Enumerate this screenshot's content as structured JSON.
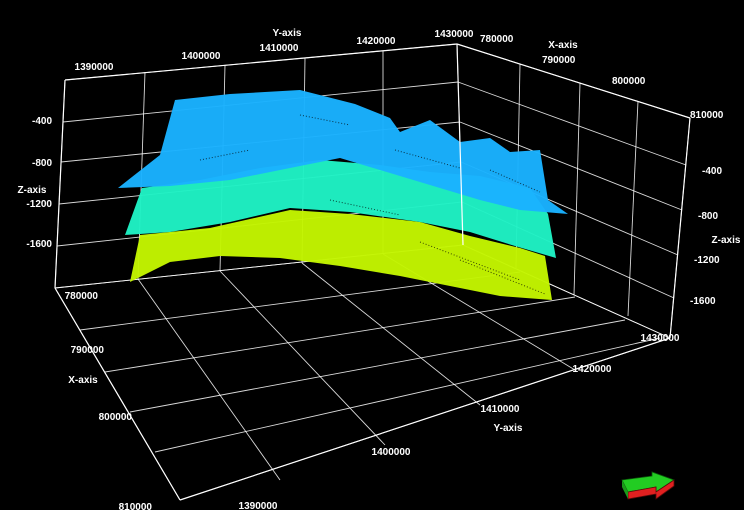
{
  "chart_data": {
    "type": "surface3d",
    "axes": {
      "x": {
        "label": "X-axis",
        "ticks": [
          "780000",
          "790000",
          "800000",
          "810000"
        ]
      },
      "y": {
        "label": "Y-axis",
        "ticks": [
          "1390000",
          "1400000",
          "1410000",
          "1420000",
          "1430000"
        ]
      },
      "z": {
        "label": "Z-axis",
        "ticks": [
          "-400",
          "-800",
          "-1200",
          "-1600"
        ]
      }
    },
    "surfaces": [
      {
        "color": "#1ab2ff"
      },
      {
        "color": "#1ff2c4"
      },
      {
        "color": "#c3f500"
      }
    ]
  },
  "icons": {
    "orientation": "orientation-arrow-icon"
  }
}
